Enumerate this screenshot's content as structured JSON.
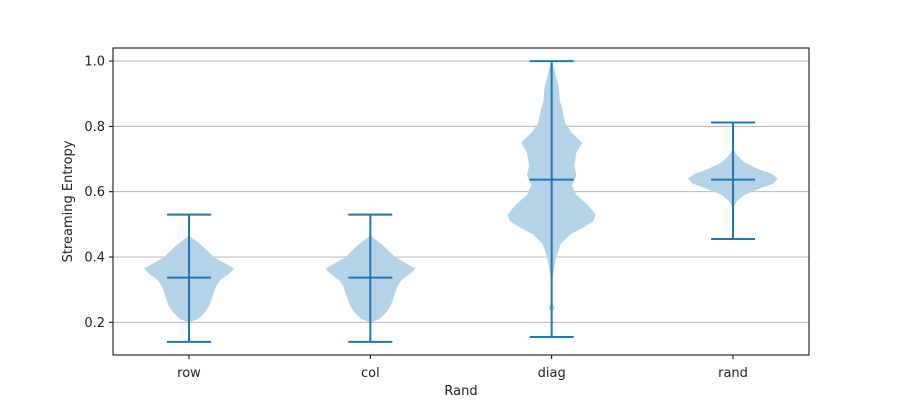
{
  "chart_data": {
    "type": "violin",
    "title": "",
    "xlabel": "Rand",
    "ylabel": "Streaming Entropy",
    "ylim": [
      0.1,
      1.04
    ],
    "yticks": [
      0.2,
      0.4,
      0.6,
      0.8,
      1.0
    ],
    "ytick_labels": [
      "0.2",
      "0.4",
      "0.6",
      "0.8",
      "1.0"
    ],
    "grid": "y",
    "categories": [
      "row",
      "col",
      "diag",
      "rand"
    ],
    "violins": [
      {
        "name": "row",
        "min": 0.14,
        "max": 0.53,
        "mean": 0.337,
        "density": [
          [
            0.2,
            0.0
          ],
          [
            0.21,
            0.2
          ],
          [
            0.23,
            0.35
          ],
          [
            0.25,
            0.45
          ],
          [
            0.27,
            0.5
          ],
          [
            0.29,
            0.55
          ],
          [
            0.31,
            0.6
          ],
          [
            0.33,
            0.7
          ],
          [
            0.35,
            0.9
          ],
          [
            0.365,
            1.0
          ],
          [
            0.38,
            0.8
          ],
          [
            0.4,
            0.55
          ],
          [
            0.42,
            0.4
          ],
          [
            0.44,
            0.25
          ],
          [
            0.46,
            0.05
          ],
          [
            0.47,
            0.0
          ]
        ]
      },
      {
        "name": "col",
        "min": 0.14,
        "max": 0.53,
        "mean": 0.337,
        "density": [
          [
            0.2,
            0.0
          ],
          [
            0.21,
            0.2
          ],
          [
            0.23,
            0.35
          ],
          [
            0.25,
            0.45
          ],
          [
            0.27,
            0.5
          ],
          [
            0.29,
            0.55
          ],
          [
            0.31,
            0.6
          ],
          [
            0.33,
            0.7
          ],
          [
            0.35,
            0.9
          ],
          [
            0.365,
            1.0
          ],
          [
            0.38,
            0.8
          ],
          [
            0.4,
            0.55
          ],
          [
            0.42,
            0.4
          ],
          [
            0.44,
            0.25
          ],
          [
            0.46,
            0.05
          ],
          [
            0.47,
            0.0
          ]
        ]
      },
      {
        "name": "diag",
        "min": 0.155,
        "max": 1.0,
        "mean": 0.637,
        "density": [
          [
            0.23,
            0.0
          ],
          [
            0.245,
            0.07
          ],
          [
            0.26,
            0.0
          ],
          [
            0.32,
            0.0
          ],
          [
            0.36,
            0.05
          ],
          [
            0.4,
            0.1
          ],
          [
            0.44,
            0.2
          ],
          [
            0.47,
            0.42
          ],
          [
            0.49,
            0.7
          ],
          [
            0.51,
            0.93
          ],
          [
            0.53,
            0.98
          ],
          [
            0.56,
            0.8
          ],
          [
            0.59,
            0.55
          ],
          [
            0.62,
            0.45
          ],
          [
            0.65,
            0.55
          ],
          [
            0.68,
            0.5
          ],
          [
            0.72,
            0.55
          ],
          [
            0.75,
            0.68
          ],
          [
            0.78,
            0.45
          ],
          [
            0.81,
            0.3
          ],
          [
            0.85,
            0.24
          ],
          [
            0.88,
            0.18
          ],
          [
            0.92,
            0.16
          ],
          [
            0.95,
            0.1
          ],
          [
            0.98,
            0.05
          ],
          [
            1.0,
            0.0
          ]
        ]
      },
      {
        "name": "rand",
        "min": 0.455,
        "max": 0.812,
        "mean": 0.637,
        "density": [
          [
            0.55,
            0.0
          ],
          [
            0.57,
            0.08
          ],
          [
            0.59,
            0.25
          ],
          [
            0.61,
            0.6
          ],
          [
            0.625,
            0.9
          ],
          [
            0.64,
            1.0
          ],
          [
            0.655,
            0.85
          ],
          [
            0.67,
            0.55
          ],
          [
            0.69,
            0.25
          ],
          [
            0.71,
            0.1
          ],
          [
            0.73,
            0.0
          ]
        ]
      }
    ],
    "colors": {
      "body": "#b4d3e8",
      "lines": "#1f77b4",
      "grid": "#b0b0b0",
      "frame": "#000000"
    }
  }
}
